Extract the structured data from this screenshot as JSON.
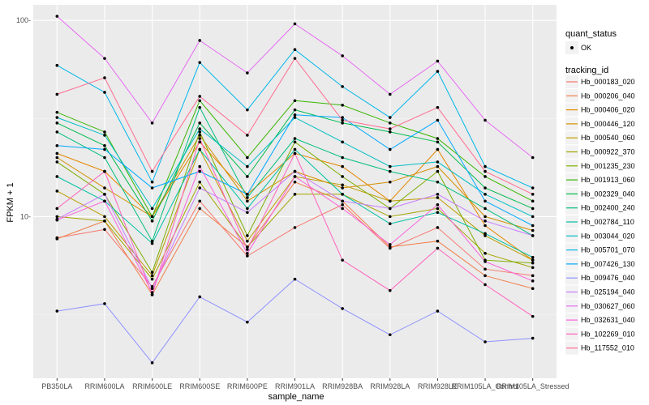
{
  "chart_data": {
    "type": "line",
    "xlabel": "sample_name",
    "ylabel": "FPKM + 1",
    "y_scale": "log10",
    "ylim": [
      1.5,
      120
    ],
    "y_ticks": [
      10,
      100
    ],
    "y_tick_labels": [
      "10-",
      "100-"
    ],
    "grid": true,
    "categories": [
      "PB350LA",
      "RRIM600LA",
      "RRIM600LE",
      "RRIM600SE",
      "RRIM600PE",
      "RRIM901LA",
      "RRIM928BA",
      "RRIM928LA",
      "RRIM928LE",
      "RRIM105LA_Control",
      "RRIM105LA_Stressed"
    ],
    "legend_position": "right",
    "legend_shape_title": "quant_status",
    "legend_shape_items": [
      "OK"
    ],
    "legend_color_title": "tracking_id",
    "series": [
      {
        "name": "Hb_000183_020",
        "color": "#F8766D",
        "values": [
          7.8,
          8.6,
          4.4,
          12.0,
          6.3,
          8.8,
          11.5,
          6.9,
          8.8,
          5.4,
          5.0
        ]
      },
      {
        "name": "Hb_000206_040",
        "color": "#F07F4B",
        "values": [
          7.7,
          9.5,
          4.0,
          11.0,
          7.0,
          15.0,
          12.0,
          7.0,
          7.5,
          5.0,
          4.3
        ]
      },
      {
        "name": "Hb_000406_020",
        "color": "#E48800",
        "values": [
          21.0,
          17.0,
          10.0,
          24.0,
          13.0,
          21.0,
          18.0,
          12.0,
          22.0,
          9.0,
          6.0
        ]
      },
      {
        "name": "Hb_000446_120",
        "color": "#D49000",
        "values": [
          20.0,
          14.0,
          10.0,
          26.0,
          12.0,
          17.0,
          14.0,
          15.0,
          18.0,
          10.0,
          8.5
        ]
      },
      {
        "name": "Hb_000540_060",
        "color": "#BE9C00",
        "values": [
          13.5,
          10.0,
          5.0,
          22.0,
          7.5,
          16.0,
          14.5,
          12.0,
          12.5,
          8.0,
          6.0
        ]
      },
      {
        "name": "Hb_000922_370",
        "color": "#A3A500",
        "values": [
          10.0,
          9.5,
          4.8,
          15.0,
          7.0,
          13.0,
          13.0,
          10.0,
          11.0,
          6.5,
          5.5
        ]
      },
      {
        "name": "Hb_001235_230",
        "color": "#7CAE00",
        "values": [
          19.0,
          13.0,
          5.2,
          27.0,
          8.0,
          24.0,
          16.0,
          11.0,
          17.0,
          6.0,
          5.8
        ]
      },
      {
        "name": "Hb_001913_060",
        "color": "#39B600",
        "values": [
          34.0,
          27.0,
          10.0,
          39.0,
          20.0,
          39.0,
          37.0,
          30.0,
          25.0,
          16.0,
          12.0
        ]
      },
      {
        "name": "Hb_002329_040",
        "color": "#00BB4E",
        "values": [
          30.0,
          23.0,
          9.5,
          30.0,
          16.0,
          35.0,
          30.0,
          27.0,
          24.0,
          14.0,
          11.0
        ]
      },
      {
        "name": "Hb_002400_240",
        "color": "#00BF7D",
        "values": [
          27.0,
          20.0,
          7.5,
          36.0,
          12.5,
          25.0,
          20.0,
          17.0,
          15.0,
          11.0,
          8.0
        ]
      },
      {
        "name": "Hb_002784_110",
        "color": "#00C1A3",
        "values": [
          16.0,
          12.0,
          7.3,
          22.0,
          11.0,
          22.0,
          13.0,
          9.2,
          10.5,
          8.2,
          6.2
        ]
      },
      {
        "name": "Hb_003044_020",
        "color": "#00BFC4",
        "values": [
          32.0,
          26.0,
          11.0,
          28.0,
          18.0,
          32.0,
          24.0,
          18.0,
          19.0,
          13.0,
          10.0
        ]
      },
      {
        "name": "Hb_005701_070",
        "color": "#00B7E9",
        "values": [
          59.0,
          43.0,
          15.0,
          61.0,
          35.0,
          71.0,
          46.0,
          32.0,
          55.0,
          18.0,
          14.0
        ]
      },
      {
        "name": "Hb_007426_130",
        "color": "#00A9FF",
        "values": [
          23.0,
          22.0,
          14.0,
          17.0,
          13.0,
          33.0,
          32.0,
          22.0,
          31.0,
          12.0,
          9.0
        ]
      },
      {
        "name": "Hb_009476_040",
        "color": "#8F91FF",
        "values": [
          3.3,
          3.6,
          1.8,
          3.9,
          2.9,
          4.8,
          3.4,
          2.5,
          3.3,
          2.3,
          2.4
        ]
      },
      {
        "name": "Hb_025194_040",
        "color": "#C77CFF",
        "values": [
          9.7,
          13.0,
          4.3,
          14.0,
          10.5,
          17.0,
          12.0,
          11.0,
          13.0,
          9.5,
          8.0
        ]
      },
      {
        "name": "Hb_030627_060",
        "color": "#E76BF3",
        "values": [
          105.0,
          64.0,
          30.0,
          79.0,
          54.0,
          96.0,
          66.0,
          42.0,
          62.0,
          31.0,
          20.0
        ]
      },
      {
        "name": "Hb_032631_040",
        "color": "#FA62DB",
        "values": [
          9.6,
          12.0,
          4.1,
          18.0,
          6.5,
          16.0,
          11.0,
          7.2,
          11.5,
          5.9,
          4.7
        ]
      },
      {
        "name": "Hb_102269_010",
        "color": "#FF62BC",
        "values": [
          11.0,
          17.0,
          4.0,
          25.0,
          6.8,
          21.0,
          6.0,
          4.2,
          6.9,
          4.5,
          3.1
        ]
      },
      {
        "name": "Hb_117552_010",
        "color": "#FF6C91",
        "values": [
          42.0,
          51.0,
          17.0,
          41.0,
          26.0,
          64.0,
          31.0,
          28.0,
          36.0,
          17.0,
          13.0
        ]
      }
    ]
  }
}
